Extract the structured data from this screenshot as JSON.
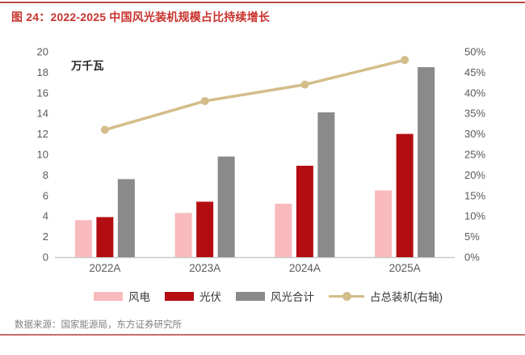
{
  "title": "图 24：2022-2025 中国风光装机规模占比持续增长",
  "source": "数据来源：国家能源局，东方证券研究所",
  "colors": {
    "title_red": "#c8332e",
    "top_rule": "#bb4a44",
    "bottom_rule": "#c4706a",
    "wind_pink": "#f9babd",
    "solar_red": "#b30d12",
    "total_gray": "#8a8a8a",
    "share_tan": "#d3bd8a",
    "axis_text": "#595959",
    "axis_line": "#c9c9c9",
    "unit_text": "#262626",
    "source_text": "#7f7f7f",
    "legend_text": "#383838"
  },
  "chart_data": {
    "type": "bar+line",
    "title": "2022-2025 中国风光装机规模占比持续增长",
    "categories": [
      "2022A",
      "2023A",
      "2024A",
      "2025A"
    ],
    "series": [
      {
        "key": "wind",
        "name": "风电",
        "type": "bar",
        "axis": "left",
        "values": [
          3.6,
          4.3,
          5.2,
          6.5
        ],
        "color_key": "wind_pink"
      },
      {
        "key": "solar",
        "name": "光伏",
        "type": "bar",
        "axis": "left",
        "values": [
          3.9,
          5.4,
          8.9,
          12.0
        ],
        "color_key": "solar_red"
      },
      {
        "key": "total",
        "name": "风光合计",
        "type": "bar",
        "axis": "left",
        "values": [
          7.6,
          9.8,
          14.1,
          18.5
        ],
        "color_key": "total_gray"
      },
      {
        "key": "share",
        "name": "占总装机(右轴)",
        "type": "line",
        "axis": "right",
        "values": [
          31,
          38,
          42,
          48
        ],
        "color_key": "share_tan"
      }
    ],
    "left_axis": {
      "min": 0,
      "max": 20,
      "step": 2,
      "unit": "万千瓦"
    },
    "right_axis": {
      "min": 0,
      "max": 50,
      "step": 5,
      "suffix": "%"
    },
    "legend_position": "bottom",
    "grid": false
  }
}
